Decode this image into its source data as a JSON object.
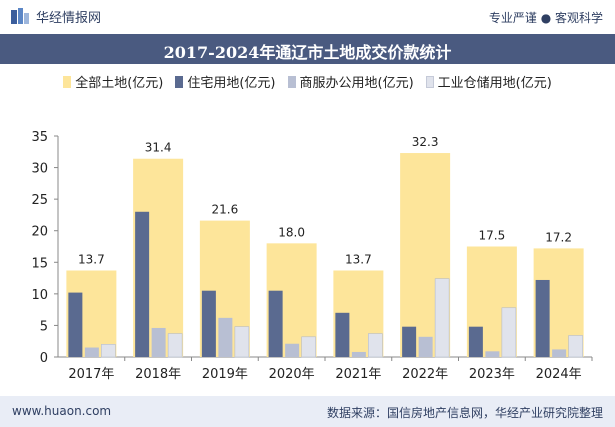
{
  "header": {
    "brand": "华经情报网",
    "tagline": "专业严谨 ● 客观科学"
  },
  "title": "2017-2024年通辽市土地成交价款统计",
  "footer": {
    "website": "www.huaon.com",
    "source": "数据来源：国信房地产信息网，华经产业研究院整理"
  },
  "colors": {
    "total": "#fde59a",
    "residential": "#5a6a90",
    "commercial": "#b8bfd3",
    "industrial": "#e0e3ec",
    "header_band": "#4a5a80",
    "footer_band": "#e9edf6"
  },
  "chart_data": {
    "type": "bar",
    "title": "2017-2024年通辽市土地成交价款统计",
    "categories": [
      "2017年",
      "2018年",
      "2019年",
      "2020年",
      "2021年",
      "2022年",
      "2023年",
      "2024年"
    ],
    "ylim": [
      0,
      35
    ],
    "yticks": [
      0,
      5,
      10,
      15,
      20,
      25,
      30,
      35
    ],
    "legend_position": "top",
    "series": [
      {
        "name": "全部土地(亿元)",
        "values": [
          13.7,
          31.4,
          21.6,
          18.0,
          13.7,
          32.3,
          17.5,
          17.2
        ],
        "labels": [
          "13.7",
          "31.4",
          "21.6",
          "18.0",
          "13.7",
          "32.3",
          "17.5",
          "17.2"
        ]
      },
      {
        "name": "住宅用地(亿元)",
        "values": [
          10.2,
          23.0,
          10.5,
          10.5,
          7.0,
          4.8,
          4.8,
          12.2
        ]
      },
      {
        "name": "商服办公用地(亿元)",
        "values": [
          1.5,
          4.6,
          6.2,
          2.1,
          0.8,
          3.2,
          0.9,
          1.2
        ]
      },
      {
        "name": "工业仓储用地(亿元)",
        "values": [
          2.0,
          3.7,
          4.8,
          3.2,
          3.7,
          12.4,
          7.8,
          3.4
        ]
      }
    ]
  }
}
